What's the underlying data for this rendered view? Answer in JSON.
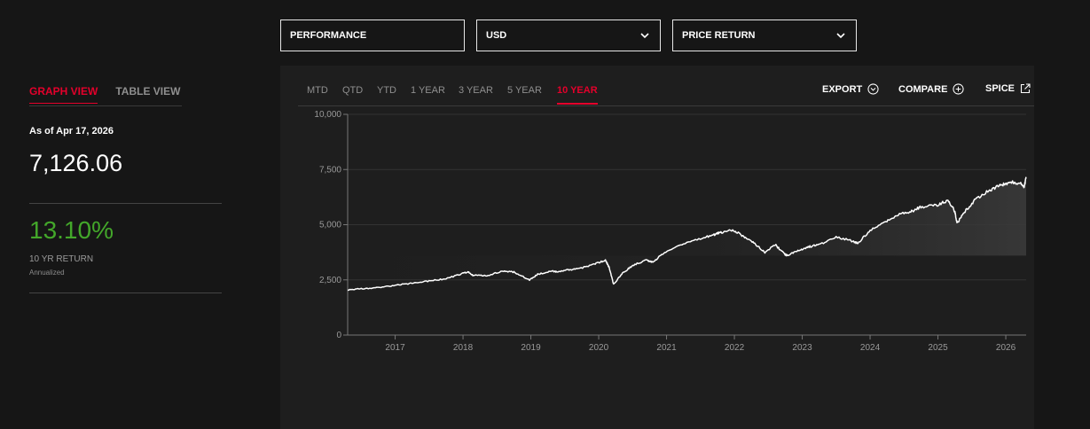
{
  "selectors": {
    "performance": "PERFORMANCE",
    "currency": "USD",
    "return_type": "PRICE RETURN"
  },
  "view_tabs": {
    "graph": "GRAPH VIEW",
    "table": "TABLE VIEW",
    "active": "graph"
  },
  "summary": {
    "as_of": "As of Apr 17, 2026",
    "level": "7,126.06",
    "return_pct": "13.10%",
    "return_label": "10 YR RETURN",
    "return_note": "Annualized",
    "return_color": "#43a72a"
  },
  "period_tabs": [
    "MTD",
    "QTD",
    "YTD",
    "1 YEAR",
    "3 YEAR",
    "5 YEAR",
    "10 YEAR"
  ],
  "active_period": "10 YEAR",
  "actions": {
    "export": "EXPORT",
    "compare": "COMPARE",
    "ticker": "SPICE"
  },
  "accent_color": "#e4002b",
  "chart_data": {
    "type": "area",
    "title": "",
    "xlabel": "",
    "ylabel": "",
    "y_tick_labels": [
      "0",
      "2,500",
      "5,000",
      "7,500",
      "10,000"
    ],
    "x_tick_labels": [
      "2017",
      "2018",
      "2019",
      "2020",
      "2021",
      "2022",
      "2023",
      "2024",
      "2025",
      "2026"
    ],
    "ylim": [
      0,
      10000
    ],
    "xlim": [
      2016.3,
      2026.3
    ],
    "grid": "horizontal",
    "x": [
      2016.3,
      2016.5,
      2016.75,
      2017.0,
      2017.25,
      2017.5,
      2017.75,
      2018.0,
      2018.08,
      2018.15,
      2018.35,
      2018.6,
      2018.75,
      2018.98,
      2019.1,
      2019.3,
      2019.4,
      2019.55,
      2019.7,
      2019.95,
      2020.1,
      2020.15,
      2020.22,
      2020.35,
      2020.5,
      2020.7,
      2020.8,
      2020.95,
      2021.2,
      2021.5,
      2021.7,
      2021.8,
      2021.99,
      2022.15,
      2022.3,
      2022.45,
      2022.6,
      2022.75,
      2022.78,
      2022.95,
      2023.1,
      2023.25,
      2023.5,
      2023.75,
      2023.82,
      2024.0,
      2024.25,
      2024.4,
      2024.6,
      2024.75,
      2024.99,
      2025.15,
      2025.25,
      2025.28,
      2025.4,
      2025.55,
      2025.75,
      2025.9,
      2026.0,
      2026.1,
      2026.22,
      2026.27,
      2026.3
    ],
    "series": [
      {
        "values": [
          2050,
          2100,
          2150,
          2250,
          2350,
          2450,
          2550,
          2800,
          2850,
          2700,
          2700,
          2900,
          2850,
          2500,
          2750,
          2900,
          2850,
          2950,
          3000,
          3230,
          3380,
          3100,
          2300,
          2800,
          3150,
          3400,
          3300,
          3700,
          4100,
          4350,
          4550,
          4650,
          4750,
          4450,
          4150,
          3750,
          4100,
          3650,
          3600,
          3850,
          4000,
          4100,
          4450,
          4250,
          4150,
          4750,
          5150,
          5450,
          5600,
          5800,
          5900,
          6100,
          5600,
          5050,
          5600,
          6150,
          6550,
          6750,
          6850,
          6950,
          6850,
          6700,
          7126
        ]
      }
    ]
  }
}
